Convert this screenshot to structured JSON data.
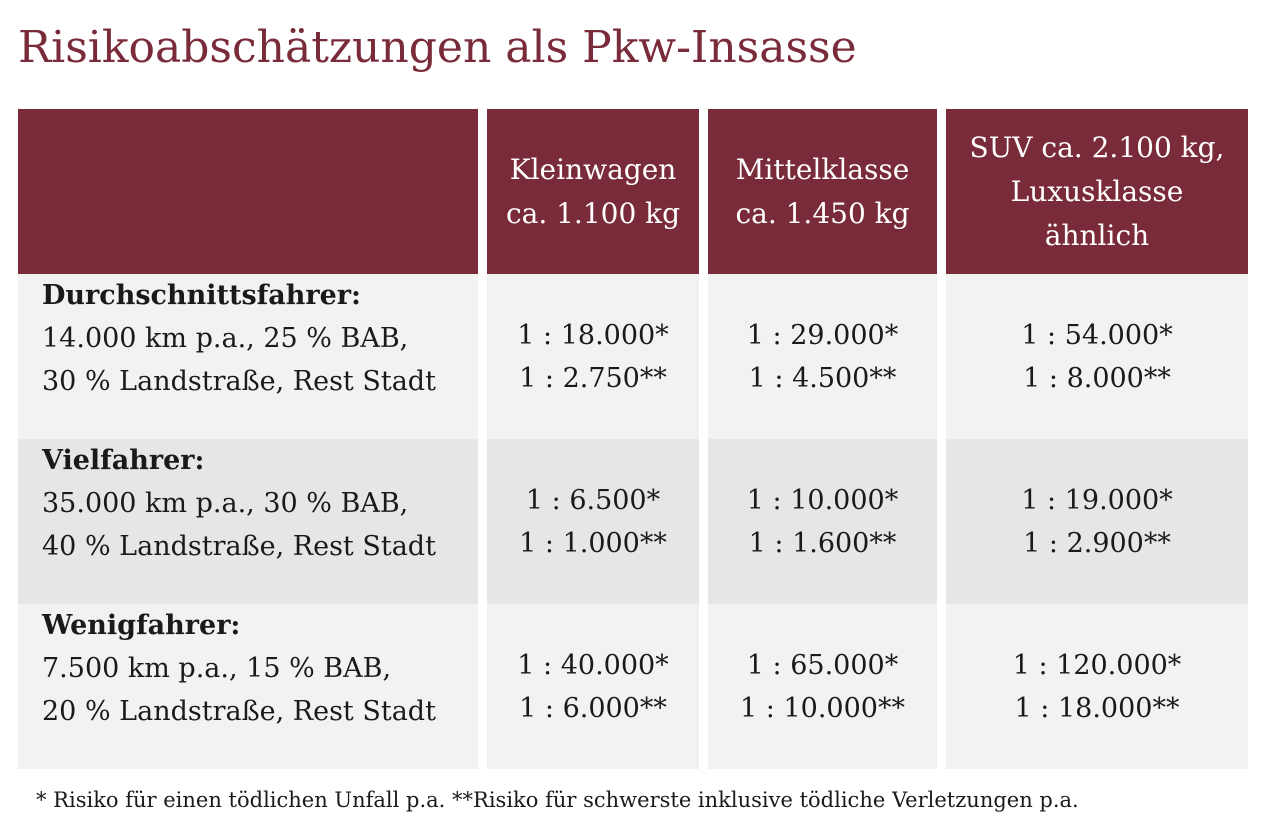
{
  "title": "Risikoabschätzungen als Pkw-Insasse",
  "table": {
    "columns": [
      {
        "lines": [
          "Kleinwagen",
          "ca. 1.100 kg"
        ]
      },
      {
        "lines": [
          "Mittelklasse",
          "ca. 1.450 kg"
        ]
      },
      {
        "lines": [
          "SUV ca. 2.100 kg,",
          "Luxusklasse",
          "ähnlich"
        ]
      }
    ],
    "rows": [
      {
        "title": "Durchschnittsfahrer:",
        "lines": [
          "14.000 km p.a., 25 % BAB,",
          "30 % Landstraße, Rest Stadt"
        ],
        "values": [
          [
            "1 : 18.000*",
            "1 : 2.750**"
          ],
          [
            "1 : 29.000*",
            "1 : 4.500**"
          ],
          [
            "1 : 54.000*",
            "1 : 8.000**"
          ]
        ]
      },
      {
        "title": "Vielfahrer:",
        "lines": [
          "35.000 km p.a., 30 % BAB,",
          "40 % Landstraße, Rest Stadt"
        ],
        "values": [
          [
            "1 : 6.500*",
            "1 : 1.000**"
          ],
          [
            "1 : 10.000*",
            "1 : 1.600**"
          ],
          [
            "1 : 19.000*",
            "1 : 2.900**"
          ]
        ]
      },
      {
        "title": "Wenigfahrer:",
        "lines": [
          "7.500 km p.a., 15 % BAB,",
          "20 % Landstraße, Rest Stadt"
        ],
        "values": [
          [
            "1 : 40.000*",
            "1 : 6.000**"
          ],
          [
            "1 : 65.000*",
            "1 : 10.000**"
          ],
          [
            "1 : 120.000*",
            "1 : 18.000**"
          ]
        ]
      }
    ]
  },
  "footnote": "* Risiko für einen tödlichen Unfall p.a. **Risiko für schwerste inklusive tödliche Verletzungen p.a.",
  "colors": {
    "header_bg": "#7a2b39",
    "row_light": "#f2f2f2",
    "row_dark": "#e6e6e6"
  }
}
